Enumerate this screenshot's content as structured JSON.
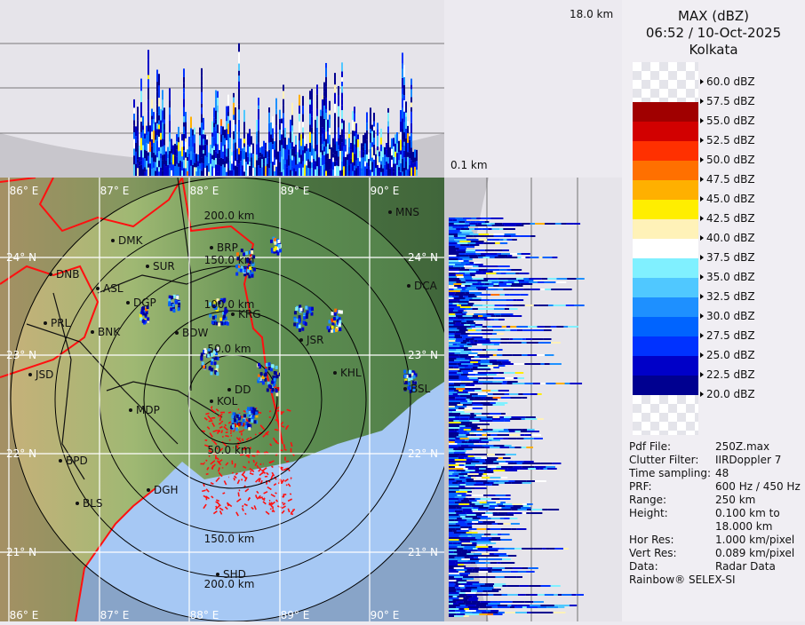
{
  "header": {
    "product": "MAX (dBZ)",
    "datetime": "06:52 / 10-Oct-2025",
    "station": "Kolkata"
  },
  "height_labels": {
    "top": "18.0 km",
    "bottom": "0.1 km"
  },
  "legend": [
    {
      "label": "60.0 dBZ",
      "color": null
    },
    {
      "label": "57.5 dBZ",
      "color": "#a00000"
    },
    {
      "label": "55.0 dBZ",
      "color": "#d20000"
    },
    {
      "label": "52.5 dBZ",
      "color": "#ff3000"
    },
    {
      "label": "50.0 dBZ",
      "color": "#ff7000"
    },
    {
      "label": "47.5 dBZ",
      "color": "#ffb000"
    },
    {
      "label": "45.0 dBZ",
      "color": "#ffee00"
    },
    {
      "label": "42.5 dBZ",
      "color": "#fff2b8"
    },
    {
      "label": "40.0 dBZ",
      "color": "#ffffff"
    },
    {
      "label": "37.5 dBZ",
      "color": "#80f0ff"
    },
    {
      "label": "35.0 dBZ",
      "color": "#50c8ff"
    },
    {
      "label": "32.5 dBZ",
      "color": "#1e90ff"
    },
    {
      "label": "30.0 dBZ",
      "color": "#0064ff"
    },
    {
      "label": "27.5 dBZ",
      "color": "#0032ff"
    },
    {
      "label": "25.0 dBZ",
      "color": "#0000c8"
    },
    {
      "label": "22.5 dBZ",
      "color": "#000090"
    },
    {
      "label": "20.0 dBZ",
      "color": null
    }
  ],
  "info": [
    {
      "k": "Pdf File:",
      "v": "250Z.max"
    },
    {
      "k": "Clutter Filter:",
      "v": "IIRDoppler 7"
    },
    {
      "k": "Time sampling:",
      "v": "48"
    },
    {
      "k": "PRF:",
      "v": "600 Hz / 450 Hz"
    },
    {
      "k": "Range:",
      "v": "250 km"
    },
    {
      "k": "Height:",
      "v": "0.100 km to"
    },
    {
      "k": "",
      "v": "18.000 km"
    },
    {
      "k": "Hor Res:",
      "v": "1.000 km/pixel"
    },
    {
      "k": "Vert Res:",
      "v": "0.089 km/pixel"
    },
    {
      "k": "Data:",
      "v": "Radar Data"
    }
  ],
  "footer": "Rainbow® SELEX-SI",
  "map": {
    "lon_labels": [
      "86° E",
      "87° E",
      "88° E",
      "89° E",
      "90° E"
    ],
    "lat_labels": [
      "24° N",
      "23° N",
      "22° N",
      "21° N"
    ],
    "range_rings": [
      "50.0 km",
      "100.0 km",
      "150.0 km",
      "200.0 km"
    ],
    "cities": [
      "MNS",
      "DMK",
      "BRP",
      "SUR",
      "DNB",
      "ASL",
      "DGP",
      "KRG",
      "PRL",
      "BNK",
      "BDW",
      "JSR",
      "DCA",
      "KHL",
      "BSL",
      "JSD",
      "DD",
      "KOL",
      "MDP",
      "BPD",
      "BLS",
      "DGH",
      "SHD"
    ],
    "colors": {
      "land": "#5f8f52",
      "sea": "#a6c8f4",
      "border": "#ff1010",
      "grid": "#ffffff",
      "ring": "#000000"
    }
  }
}
